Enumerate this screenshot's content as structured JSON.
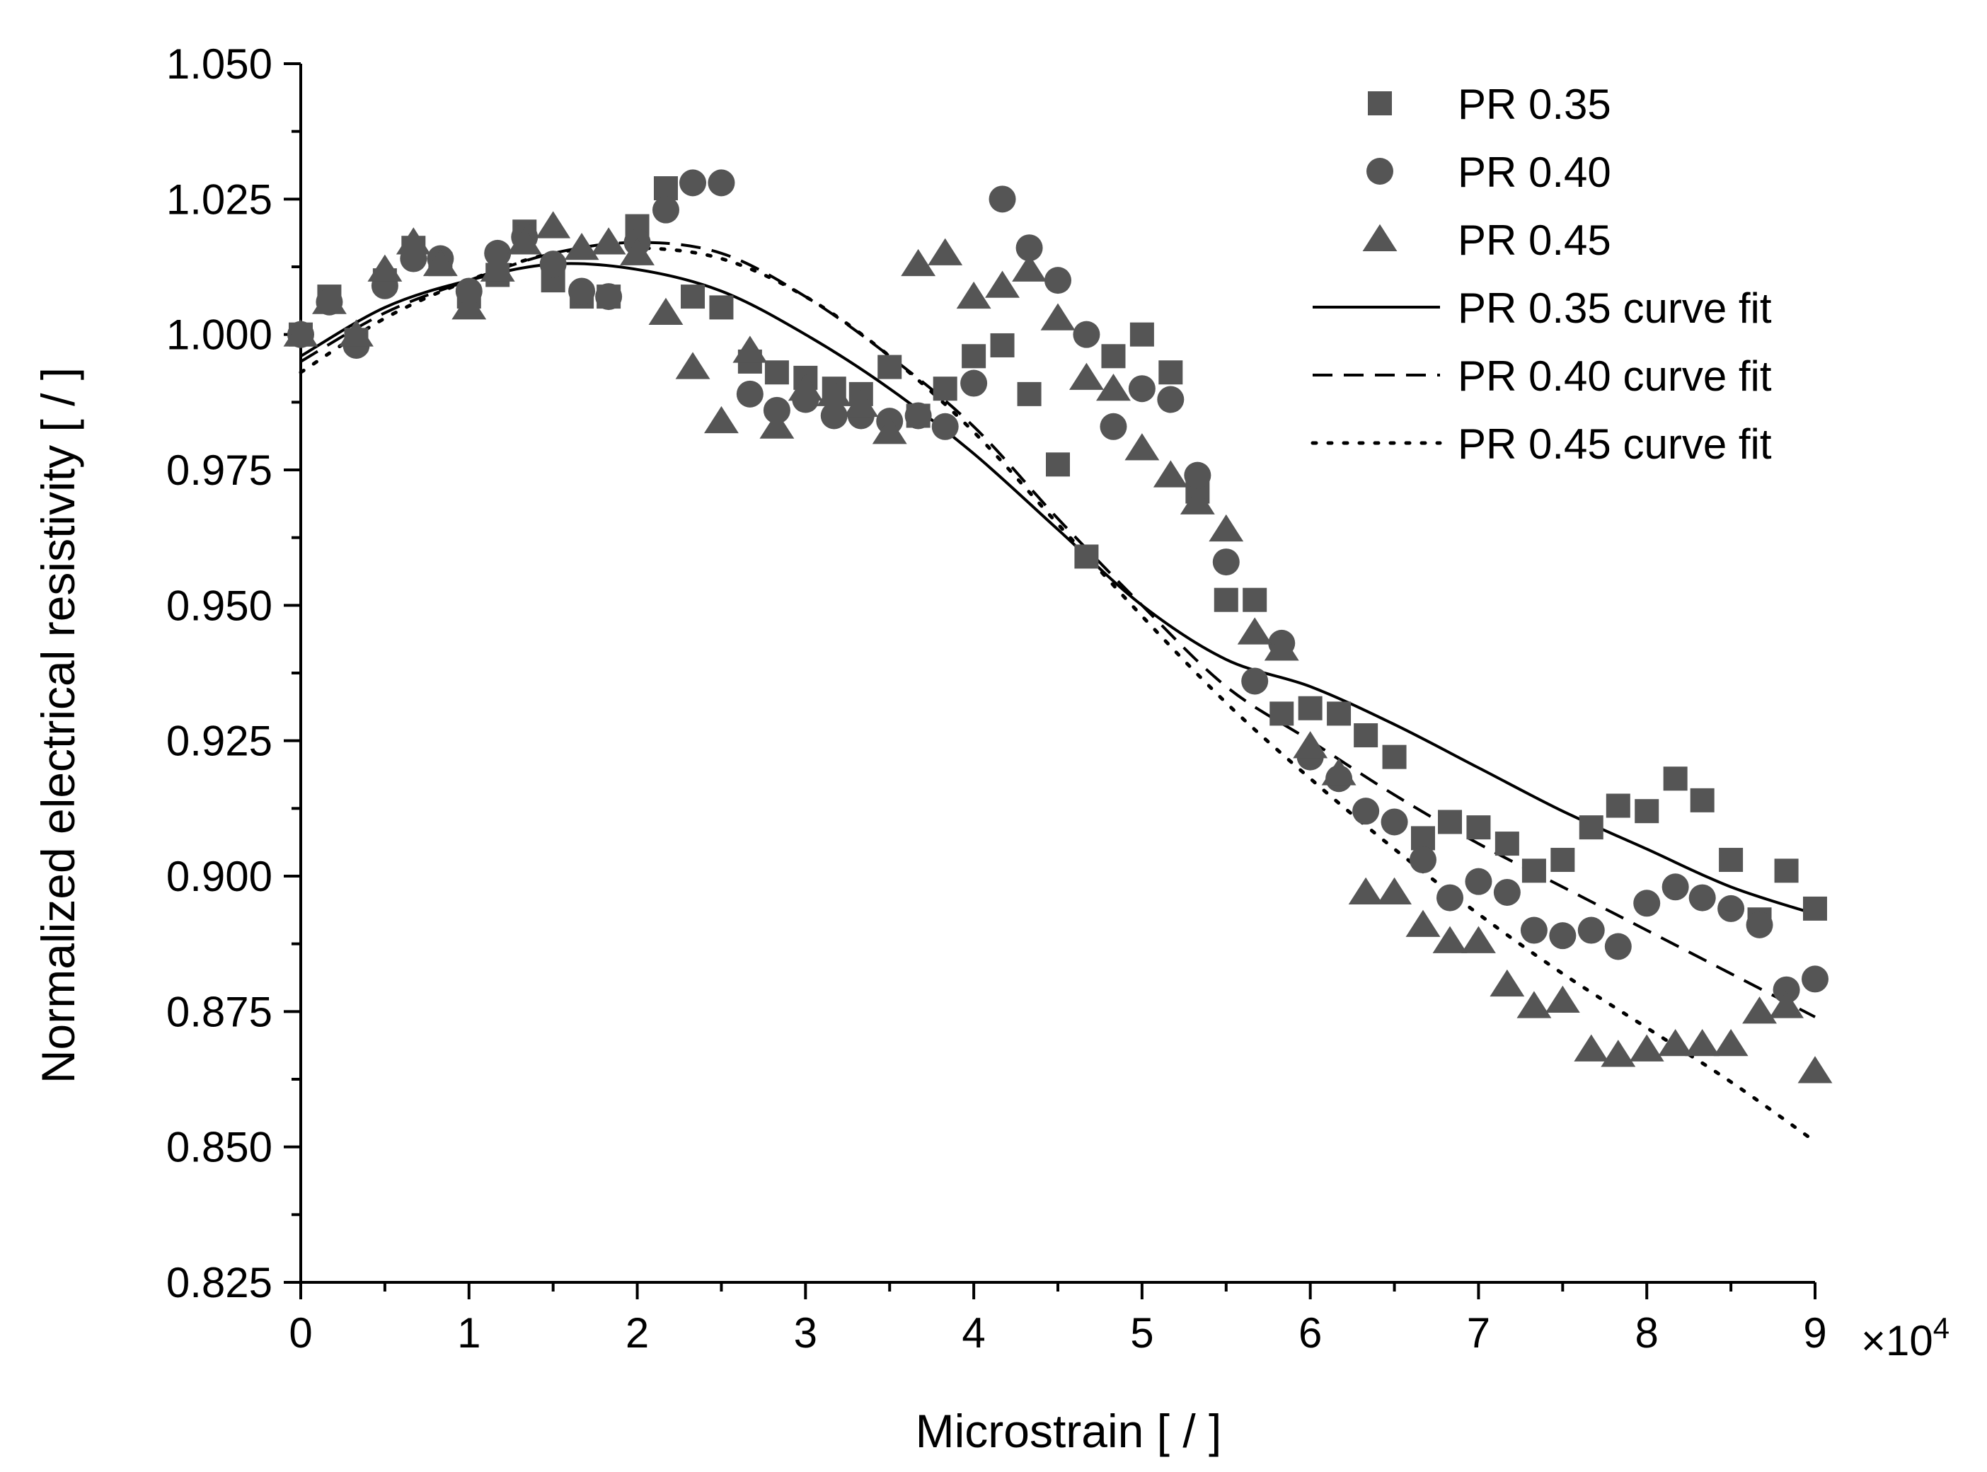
{
  "chart_data": {
    "type": "scatter",
    "title": "",
    "xlabel": "Microstrain [ / ]",
    "ylabel": "Normalized electrical resistivity [ / ]",
    "x_multiplier_label": "×10",
    "x_multiplier_exponent": "4",
    "xlim": [
      0,
      9
    ],
    "ylim": [
      0.825,
      1.05
    ],
    "x_ticks": [
      "0",
      "1",
      "2",
      "3",
      "4",
      "5",
      "6",
      "7",
      "8",
      "9"
    ],
    "y_ticks": [
      "0.825",
      "0.850",
      "0.875",
      "0.900",
      "0.925",
      "0.950",
      "0.975",
      "1.000",
      "1.025",
      "1.050"
    ],
    "legend_position": "top-right",
    "series": [
      {
        "name": "PR 0.35",
        "marker": "square",
        "color": "#555555",
        "points": [
          [
            0,
            1.0
          ],
          [
            0.17,
            1.007
          ],
          [
            0.33,
            0.999
          ],
          [
            0.5,
            1.01
          ],
          [
            0.67,
            1.016
          ],
          [
            0.83,
            1.013
          ],
          [
            1.0,
            1.007
          ],
          [
            1.17,
            1.011
          ],
          [
            1.33,
            1.019
          ],
          [
            1.5,
            1.01
          ],
          [
            1.67,
            1.007
          ],
          [
            1.83,
            1.007
          ],
          [
            2.0,
            1.02
          ],
          [
            2.17,
            1.027
          ],
          [
            2.33,
            1.007
          ],
          [
            2.5,
            1.005
          ],
          [
            2.67,
            0.995
          ],
          [
            2.83,
            0.993
          ],
          [
            3.0,
            0.992
          ],
          [
            3.17,
            0.99
          ],
          [
            3.33,
            0.989
          ],
          [
            3.5,
            0.994
          ],
          [
            3.67,
            0.985
          ],
          [
            3.83,
            0.99
          ],
          [
            4.0,
            0.996
          ],
          [
            4.17,
            0.998
          ],
          [
            4.33,
            0.989
          ],
          [
            4.5,
            0.976
          ],
          [
            4.67,
            0.959
          ],
          [
            4.83,
            0.996
          ],
          [
            5.0,
            1.0
          ],
          [
            5.17,
            0.993
          ],
          [
            5.33,
            0.971
          ],
          [
            5.5,
            0.951
          ],
          [
            5.67,
            0.951
          ],
          [
            5.83,
            0.93
          ],
          [
            6.0,
            0.931
          ],
          [
            6.17,
            0.93
          ],
          [
            6.33,
            0.926
          ],
          [
            6.5,
            0.922
          ],
          [
            6.67,
            0.907
          ],
          [
            6.83,
            0.91
          ],
          [
            7.0,
            0.909
          ],
          [
            7.17,
            0.906
          ],
          [
            7.33,
            0.901
          ],
          [
            7.5,
            0.903
          ],
          [
            7.67,
            0.909
          ],
          [
            7.83,
            0.913
          ],
          [
            8.0,
            0.912
          ],
          [
            8.17,
            0.918
          ],
          [
            8.33,
            0.914
          ],
          [
            8.5,
            0.903
          ],
          [
            8.67,
            0.892
          ],
          [
            8.83,
            0.901
          ],
          [
            9.0,
            0.894
          ]
        ]
      },
      {
        "name": "PR 0.40",
        "marker": "circle",
        "color": "#555555",
        "points": [
          [
            0,
            1.0
          ],
          [
            0.17,
            1.006
          ],
          [
            0.33,
            0.998
          ],
          [
            0.5,
            1.009
          ],
          [
            0.67,
            1.014
          ],
          [
            0.83,
            1.014
          ],
          [
            1.0,
            1.008
          ],
          [
            1.17,
            1.015
          ],
          [
            1.33,
            1.018
          ],
          [
            1.5,
            1.013
          ],
          [
            1.67,
            1.008
          ],
          [
            1.83,
            1.007
          ],
          [
            2.0,
            1.017
          ],
          [
            2.17,
            1.023
          ],
          [
            2.33,
            1.028
          ],
          [
            2.5,
            1.028
          ],
          [
            2.67,
            0.989
          ],
          [
            2.83,
            0.986
          ],
          [
            3.0,
            0.988
          ],
          [
            3.17,
            0.985
          ],
          [
            3.33,
            0.985
          ],
          [
            3.5,
            0.984
          ],
          [
            3.67,
            0.985
          ],
          [
            3.83,
            0.983
          ],
          [
            4.0,
            0.991
          ],
          [
            4.17,
            1.025
          ],
          [
            4.33,
            1.016
          ],
          [
            4.5,
            1.01
          ],
          [
            4.67,
            1.0
          ],
          [
            4.83,
            0.983
          ],
          [
            5.0,
            0.99
          ],
          [
            5.17,
            0.988
          ],
          [
            5.33,
            0.974
          ],
          [
            5.5,
            0.958
          ],
          [
            5.67,
            0.936
          ],
          [
            5.83,
            0.943
          ],
          [
            6.0,
            0.922
          ],
          [
            6.17,
            0.918
          ],
          [
            6.33,
            0.912
          ],
          [
            6.5,
            0.91
          ],
          [
            6.67,
            0.903
          ],
          [
            6.83,
            0.896
          ],
          [
            7.0,
            0.899
          ],
          [
            7.17,
            0.897
          ],
          [
            7.33,
            0.89
          ],
          [
            7.5,
            0.889
          ],
          [
            7.67,
            0.89
          ],
          [
            7.83,
            0.887
          ],
          [
            8.0,
            0.895
          ],
          [
            8.17,
            0.898
          ],
          [
            8.33,
            0.896
          ],
          [
            8.5,
            0.894
          ],
          [
            8.67,
            0.891
          ],
          [
            8.83,
            0.879
          ],
          [
            9.0,
            0.881
          ]
        ]
      },
      {
        "name": "PR 0.45",
        "marker": "triangle",
        "color": "#555555",
        "points": [
          [
            0,
            1.0
          ],
          [
            0.17,
            1.006
          ],
          [
            0.33,
            1.0
          ],
          [
            0.5,
            1.012
          ],
          [
            0.67,
            1.017
          ],
          [
            0.83,
            1.013
          ],
          [
            1.0,
            1.005
          ],
          [
            1.17,
            1.012
          ],
          [
            1.33,
            1.017
          ],
          [
            1.5,
            1.02
          ],
          [
            1.67,
            1.016
          ],
          [
            1.83,
            1.017
          ],
          [
            2.0,
            1.015
          ],
          [
            2.17,
            1.004
          ],
          [
            2.33,
            0.994
          ],
          [
            2.5,
            0.984
          ],
          [
            2.67,
            0.997
          ],
          [
            2.83,
            0.983
          ],
          [
            3.0,
            0.99
          ],
          [
            3.17,
            0.989
          ],
          [
            3.33,
            0.987
          ],
          [
            3.5,
            0.982
          ],
          [
            3.67,
            1.013
          ],
          [
            3.83,
            1.015
          ],
          [
            4.0,
            1.007
          ],
          [
            4.17,
            1.009
          ],
          [
            4.33,
            1.012
          ],
          [
            4.5,
            1.003
          ],
          [
            4.67,
            0.992
          ],
          [
            4.83,
            0.99
          ],
          [
            5.0,
            0.979
          ],
          [
            5.17,
            0.974
          ],
          [
            5.33,
            0.969
          ],
          [
            5.5,
            0.964
          ],
          [
            5.67,
            0.945
          ],
          [
            5.83,
            0.942
          ],
          [
            6.0,
            0.924
          ],
          [
            6.17,
            0.919
          ],
          [
            6.33,
            0.897
          ],
          [
            6.5,
            0.897
          ],
          [
            6.67,
            0.891
          ],
          [
            6.83,
            0.888
          ],
          [
            7.0,
            0.888
          ],
          [
            7.17,
            0.88
          ],
          [
            7.33,
            0.876
          ],
          [
            7.5,
            0.877
          ],
          [
            7.67,
            0.868
          ],
          [
            7.83,
            0.867
          ],
          [
            8.0,
            0.868
          ],
          [
            8.17,
            0.869
          ],
          [
            8.33,
            0.869
          ],
          [
            8.5,
            0.869
          ],
          [
            8.67,
            0.875
          ],
          [
            8.83,
            0.876
          ],
          [
            9.0,
            0.864
          ]
        ]
      }
    ],
    "fits": [
      {
        "name": "PR 0.35 curve fit",
        "style": "solid",
        "points": [
          [
            0,
            0.996
          ],
          [
            0.5,
            1.005
          ],
          [
            1.0,
            1.01
          ],
          [
            1.5,
            1.013
          ],
          [
            2.0,
            1.012
          ],
          [
            2.5,
            1.008
          ],
          [
            3.0,
            1.0
          ],
          [
            3.5,
            0.99
          ],
          [
            4.0,
            0.978
          ],
          [
            4.5,
            0.964
          ],
          [
            5.0,
            0.95
          ],
          [
            5.5,
            0.94
          ],
          [
            6.0,
            0.935
          ],
          [
            6.5,
            0.928
          ],
          [
            7.0,
            0.92
          ],
          [
            7.5,
            0.912
          ],
          [
            8.0,
            0.905
          ],
          [
            8.5,
            0.898
          ],
          [
            9.0,
            0.893
          ]
        ]
      },
      {
        "name": "PR 0.40 curve fit",
        "style": "dashed",
        "points": [
          [
            0,
            0.995
          ],
          [
            0.5,
            1.004
          ],
          [
            1.0,
            1.01
          ],
          [
            1.5,
            1.015
          ],
          [
            2.0,
            1.017
          ],
          [
            2.5,
            1.015
          ],
          [
            3.0,
            1.007
          ],
          [
            3.5,
            0.996
          ],
          [
            4.0,
            0.983
          ],
          [
            4.5,
            0.966
          ],
          [
            5.0,
            0.95
          ],
          [
            5.5,
            0.935
          ],
          [
            6.0,
            0.925
          ],
          [
            6.5,
            0.915
          ],
          [
            7.0,
            0.906
          ],
          [
            7.5,
            0.898
          ],
          [
            8.0,
            0.89
          ],
          [
            8.5,
            0.882
          ],
          [
            9.0,
            0.874
          ]
        ]
      },
      {
        "name": "PR 0.45 curve fit",
        "style": "dotted",
        "points": [
          [
            0,
            0.993
          ],
          [
            0.5,
            1.003
          ],
          [
            1.0,
            1.01
          ],
          [
            1.5,
            1.015
          ],
          [
            2.0,
            1.016
          ],
          [
            2.5,
            1.014
          ],
          [
            3.0,
            1.007
          ],
          [
            3.5,
            0.996
          ],
          [
            4.0,
            0.982
          ],
          [
            4.5,
            0.965
          ],
          [
            5.0,
            0.948
          ],
          [
            5.5,
            0.932
          ],
          [
            6.0,
            0.918
          ],
          [
            6.5,
            0.905
          ],
          [
            7.0,
            0.893
          ],
          [
            7.5,
            0.882
          ],
          [
            8.0,
            0.872
          ],
          [
            8.5,
            0.862
          ],
          [
            9.0,
            0.851
          ]
        ]
      }
    ]
  }
}
